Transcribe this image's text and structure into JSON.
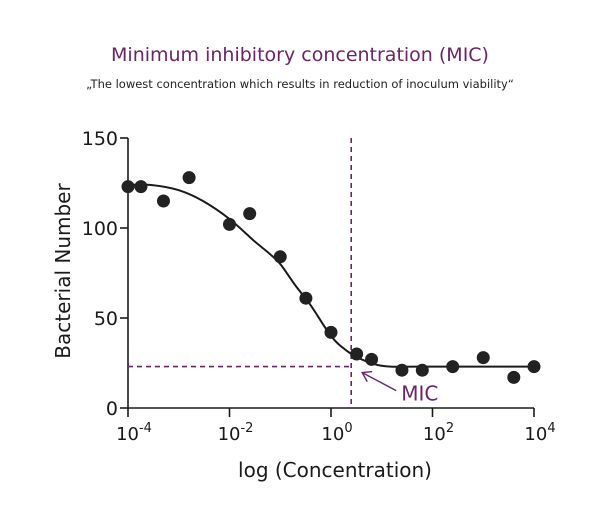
{
  "colors": {
    "accent": "#6b2468",
    "ink": "#1a1a1a"
  },
  "chart_data": {
    "type": "scatter",
    "title": "Minimum inhibitory concentration (MIC)",
    "subtitle": "„The lowest concentration which results in reduction of inoculum viability“",
    "xlabel": "log (Concentration)",
    "ylabel": "Bacterial Number",
    "x_scale": "log",
    "xlim": [
      0.0001,
      10000
    ],
    "ylim": [
      0,
      150
    ],
    "x_ticks": [
      {
        "value": 0.0001,
        "base": "10",
        "exp": "-4"
      },
      {
        "value": 0.01,
        "base": "10",
        "exp": "-2"
      },
      {
        "value": 1,
        "base": "10",
        "exp": "0"
      },
      {
        "value": 100,
        "base": "10",
        "exp": "2"
      },
      {
        "value": 10000,
        "base": "10",
        "exp": "4"
      }
    ],
    "y_ticks": [
      0,
      50,
      100,
      150
    ],
    "grid": false,
    "points": [
      {
        "x": 0.0001,
        "y": 123
      },
      {
        "x": 0.00018,
        "y": 123
      },
      {
        "x": 0.0005,
        "y": 115
      },
      {
        "x": 0.0016,
        "y": 128
      },
      {
        "x": 0.01,
        "y": 102
      },
      {
        "x": 0.025,
        "y": 108
      },
      {
        "x": 0.1,
        "y": 84
      },
      {
        "x": 0.32,
        "y": 61
      },
      {
        "x": 1,
        "y": 42
      },
      {
        "x": 3.2,
        "y": 30
      },
      {
        "x": 6.3,
        "y": 27
      },
      {
        "x": 25,
        "y": 21
      },
      {
        "x": 63,
        "y": 21
      },
      {
        "x": 250,
        "y": 23
      },
      {
        "x": 1000,
        "y": 28
      },
      {
        "x": 4000,
        "y": 17
      },
      {
        "x": 10000,
        "y": 23
      }
    ],
    "fit_curve": [
      {
        "x": 0.0001,
        "y": 124
      },
      {
        "x": 0.0003,
        "y": 123.8
      },
      {
        "x": 0.001,
        "y": 121
      },
      {
        "x": 0.003,
        "y": 115
      },
      {
        "x": 0.01,
        "y": 105
      },
      {
        "x": 0.03,
        "y": 93
      },
      {
        "x": 0.06,
        "y": 86
      },
      {
        "x": 0.1,
        "y": 80
      },
      {
        "x": 0.2,
        "y": 68
      },
      {
        "x": 0.4,
        "y": 57
      },
      {
        "x": 1,
        "y": 40
      },
      {
        "x": 2,
        "y": 32
      },
      {
        "x": 4,
        "y": 27
      },
      {
        "x": 8,
        "y": 24
      },
      {
        "x": 15,
        "y": 23
      },
      {
        "x": 50,
        "y": 23
      },
      {
        "x": 10000,
        "y": 23
      }
    ],
    "mic": {
      "x": 2.5,
      "y": 23,
      "label": "MIC"
    }
  }
}
